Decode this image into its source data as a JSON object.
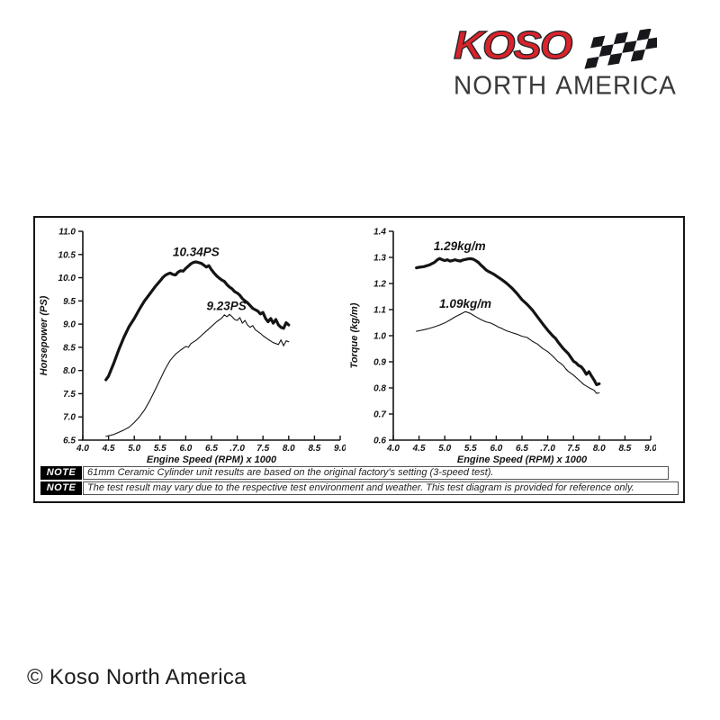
{
  "logo": {
    "brand": "KOSO",
    "region": "NORTH AMERICA",
    "brand_color": "#d9232b",
    "flag_icon": "checkered-flag"
  },
  "notes": [
    {
      "badge": "NOTE",
      "text": "61mm Ceramic Cylinder unit results are based on the original factory's setting (3-speed test)."
    },
    {
      "badge": "NOTE",
      "text": "The test result may vary due to the respective test environment and weather. This test diagram is provided for reference only."
    }
  ],
  "copyright": "© Koso North America",
  "ink_color": "#141414",
  "chart_data": [
    {
      "type": "line",
      "title": "",
      "xlabel": "Engine Speed (RPM) x 1000",
      "ylabel": "Horsepower (PS)",
      "xlim": [
        4.0,
        9.0
      ],
      "ylim": [
        6.5,
        11.0
      ],
      "grid": false,
      "legend": "none (inline annotations)",
      "x_ticks": [
        4.0,
        4.5,
        5.0,
        5.5,
        6.0,
        6.5,
        7.0,
        7.5,
        8.0,
        8.5,
        9.0
      ],
      "x_tick_labels": [
        "4.0",
        "4.5",
        "5.0",
        "5.5",
        "6.0",
        "6.5",
        ".7.0",
        "7.5",
        "8.0",
        "8.5",
        "9.0"
      ],
      "y_ticks": [
        6.5,
        7.0,
        7.5,
        8.0,
        8.5,
        9.0,
        9.5,
        10.0,
        10.5,
        11.0
      ],
      "y_tick_labels": [
        "6.5",
        "7.0",
        "7.5",
        "8.0",
        "8.5",
        "9.0",
        "9.5",
        "10.0",
        "10.5",
        "11.0"
      ],
      "series": [
        {
          "name": "thick-curve",
          "annotation": "10.34PS",
          "annotation_xy": [
            6.2,
            10.47
          ],
          "stroke_width": 3.2,
          "points": [
            [
              4.45,
              7.8
            ],
            [
              4.5,
              7.88
            ],
            [
              4.6,
              8.15
            ],
            [
              4.7,
              8.45
            ],
            [
              4.8,
              8.72
            ],
            [
              4.9,
              8.95
            ],
            [
              5.0,
              9.12
            ],
            [
              5.1,
              9.32
            ],
            [
              5.2,
              9.5
            ],
            [
              5.3,
              9.65
            ],
            [
              5.4,
              9.8
            ],
            [
              5.5,
              9.93
            ],
            [
              5.55,
              10.0
            ],
            [
              5.6,
              10.05
            ],
            [
              5.65,
              10.08
            ],
            [
              5.7,
              10.1
            ],
            [
              5.75,
              10.07
            ],
            [
              5.8,
              10.06
            ],
            [
              5.85,
              10.12
            ],
            [
              5.9,
              10.15
            ],
            [
              5.95,
              10.14
            ],
            [
              6.0,
              10.2
            ],
            [
              6.05,
              10.25
            ],
            [
              6.1,
              10.3
            ],
            [
              6.15,
              10.33
            ],
            [
              6.2,
              10.34
            ],
            [
              6.3,
              10.31
            ],
            [
              6.35,
              10.27
            ],
            [
              6.4,
              10.23
            ],
            [
              6.45,
              10.26
            ],
            [
              6.5,
              10.17
            ],
            [
              6.55,
              10.1
            ],
            [
              6.6,
              10.04
            ],
            [
              6.65,
              9.99
            ],
            [
              6.7,
              9.95
            ],
            [
              6.75,
              9.92
            ],
            [
              6.8,
              9.85
            ],
            [
              6.85,
              9.8
            ],
            [
              6.9,
              9.76
            ],
            [
              6.95,
              9.7
            ],
            [
              7.0,
              9.67
            ],
            [
              7.05,
              9.62
            ],
            [
              7.1,
              9.55
            ],
            [
              7.15,
              9.5
            ],
            [
              7.2,
              9.46
            ],
            [
              7.25,
              9.4
            ],
            [
              7.3,
              9.34
            ],
            [
              7.35,
              9.31
            ],
            [
              7.4,
              9.28
            ],
            [
              7.45,
              9.22
            ],
            [
              7.5,
              9.25
            ],
            [
              7.55,
              9.12
            ],
            [
              7.6,
              9.05
            ],
            [
              7.65,
              9.12
            ],
            [
              7.7,
              9.02
            ],
            [
              7.75,
              9.1
            ],
            [
              7.8,
              8.98
            ],
            [
              7.85,
              8.93
            ],
            [
              7.9,
              8.91
            ],
            [
              7.95,
              9.03
            ],
            [
              8.0,
              8.98
            ]
          ]
        },
        {
          "name": "thin-curve",
          "annotation": "9.23PS",
          "annotation_xy": [
            6.79,
            9.3
          ],
          "stroke_width": 1.1,
          "points": [
            [
              4.45,
              6.58
            ],
            [
              4.6,
              6.62
            ],
            [
              4.8,
              6.72
            ],
            [
              4.9,
              6.78
            ],
            [
              5.0,
              6.88
            ],
            [
              5.1,
              7.0
            ],
            [
              5.2,
              7.15
            ],
            [
              5.3,
              7.35
            ],
            [
              5.4,
              7.57
            ],
            [
              5.5,
              7.8
            ],
            [
              5.6,
              8.03
            ],
            [
              5.7,
              8.22
            ],
            [
              5.8,
              8.35
            ],
            [
              5.9,
              8.44
            ],
            [
              6.0,
              8.52
            ],
            [
              6.05,
              8.5
            ],
            [
              6.1,
              8.58
            ],
            [
              6.2,
              8.65
            ],
            [
              6.3,
              8.75
            ],
            [
              6.4,
              8.85
            ],
            [
              6.5,
              8.95
            ],
            [
              6.6,
              9.05
            ],
            [
              6.7,
              9.13
            ],
            [
              6.75,
              9.2
            ],
            [
              6.8,
              9.16
            ],
            [
              6.85,
              9.21
            ],
            [
              6.9,
              9.16
            ],
            [
              6.95,
              9.1
            ],
            [
              7.0,
              9.08
            ],
            [
              7.05,
              9.14
            ],
            [
              7.1,
              9.02
            ],
            [
              7.15,
              9.08
            ],
            [
              7.2,
              8.98
            ],
            [
              7.25,
              8.93
            ],
            [
              7.3,
              8.97
            ],
            [
              7.35,
              8.88
            ],
            [
              7.4,
              8.84
            ],
            [
              7.45,
              8.8
            ],
            [
              7.5,
              8.75
            ],
            [
              7.6,
              8.67
            ],
            [
              7.7,
              8.6
            ],
            [
              7.8,
              8.56
            ],
            [
              7.85,
              8.66
            ],
            [
              7.9,
              8.53
            ],
            [
              7.95,
              8.64
            ],
            [
              8.0,
              8.62
            ]
          ]
        }
      ]
    },
    {
      "type": "line",
      "title": "",
      "xlabel": "Engine Speed (RPM) x 1000",
      "ylabel": "Torque (kg/m)",
      "xlim": [
        4.0,
        9.0
      ],
      "ylim": [
        0.6,
        1.4
      ],
      "grid": false,
      "legend": "none (inline annotations)",
      "x_ticks": [
        4.0,
        4.5,
        5.0,
        5.5,
        6.0,
        6.5,
        7.0,
        7.5,
        8.0,
        8.5,
        9.0
      ],
      "x_tick_labels": [
        "4.0",
        "4.5",
        "5.0",
        "5.5",
        "6.0",
        "6.5",
        ".7.0",
        "7.5",
        "8.0",
        "8.5",
        "9.0"
      ],
      "y_ticks": [
        0.6,
        0.7,
        0.8,
        0.9,
        1.0,
        1.1,
        1.2,
        1.3,
        1.4
      ],
      "y_tick_labels": [
        "0.6",
        "0.7",
        "0.8",
        "0.9",
        "1.0",
        "1.1",
        "1.2",
        "1.3",
        "1.4"
      ],
      "series": [
        {
          "name": "thick-curve",
          "annotation": "1.29kg/m",
          "annotation_xy": [
            5.29,
            1.328
          ],
          "stroke_width": 3.2,
          "points": [
            [
              4.45,
              1.26
            ],
            [
              4.5,
              1.262
            ],
            [
              4.6,
              1.265
            ],
            [
              4.7,
              1.271
            ],
            [
              4.8,
              1.281
            ],
            [
              4.85,
              1.29
            ],
            [
              4.9,
              1.296
            ],
            [
              4.95,
              1.291
            ],
            [
              5.0,
              1.288
            ],
            [
              5.05,
              1.291
            ],
            [
              5.1,
              1.286
            ],
            [
              5.15,
              1.288
            ],
            [
              5.2,
              1.291
            ],
            [
              5.25,
              1.288
            ],
            [
              5.3,
              1.286
            ],
            [
              5.35,
              1.29
            ],
            [
              5.4,
              1.292
            ],
            [
              5.45,
              1.294
            ],
            [
              5.5,
              1.295
            ],
            [
              5.55,
              1.293
            ],
            [
              5.6,
              1.288
            ],
            [
              5.65,
              1.281
            ],
            [
              5.7,
              1.271
            ],
            [
              5.75,
              1.262
            ],
            [
              5.8,
              1.252
            ],
            [
              5.85,
              1.246
            ],
            [
              5.9,
              1.241
            ],
            [
              5.95,
              1.236
            ],
            [
              6.0,
              1.229
            ],
            [
              6.1,
              1.216
            ],
            [
              6.2,
              1.201
            ],
            [
              6.3,
              1.183
            ],
            [
              6.4,
              1.162
            ],
            [
              6.5,
              1.138
            ],
            [
              6.6,
              1.12
            ],
            [
              6.7,
              1.099
            ],
            [
              6.8,
              1.072
            ],
            [
              6.9,
              1.046
            ],
            [
              7.0,
              1.021
            ],
            [
              7.1,
              0.999
            ],
            [
              7.15,
              0.99
            ],
            [
              7.2,
              0.976
            ],
            [
              7.3,
              0.951
            ],
            [
              7.4,
              0.931
            ],
            [
              7.5,
              0.902
            ],
            [
              7.55,
              0.896
            ],
            [
              7.6,
              0.886
            ],
            [
              7.65,
              0.881
            ],
            [
              7.7,
              0.869
            ],
            [
              7.75,
              0.852
            ],
            [
              7.8,
              0.862
            ],
            [
              7.85,
              0.846
            ],
            [
              7.9,
              0.83
            ],
            [
              7.95,
              0.812
            ],
            [
              8.0,
              0.816
            ]
          ]
        },
        {
          "name": "thin-curve",
          "annotation": "1.09kg/m",
          "annotation_xy": [
            5.4,
            1.107
          ],
          "stroke_width": 1.1,
          "points": [
            [
              4.45,
              1.017
            ],
            [
              4.5,
              1.019
            ],
            [
              4.6,
              1.023
            ],
            [
              4.7,
              1.028
            ],
            [
              4.8,
              1.034
            ],
            [
              4.9,
              1.041
            ],
            [
              5.0,
              1.049
            ],
            [
              5.1,
              1.06
            ],
            [
              5.2,
              1.072
            ],
            [
              5.3,
              1.082
            ],
            [
              5.35,
              1.087
            ],
            [
              5.4,
              1.092
            ],
            [
              5.45,
              1.089
            ],
            [
              5.5,
              1.085
            ],
            [
              5.55,
              1.079
            ],
            [
              5.6,
              1.073
            ],
            [
              5.7,
              1.062
            ],
            [
              5.8,
              1.053
            ],
            [
              5.9,
              1.048
            ],
            [
              6.0,
              1.038
            ],
            [
              6.05,
              1.032
            ],
            [
              6.1,
              1.029
            ],
            [
              6.15,
              1.023
            ],
            [
              6.2,
              1.019
            ],
            [
              6.3,
              1.012
            ],
            [
              6.4,
              1.006
            ],
            [
              6.5,
              0.998
            ],
            [
              6.6,
              0.993
            ],
            [
              6.65,
              0.986
            ],
            [
              6.7,
              0.979
            ],
            [
              6.8,
              0.968
            ],
            [
              6.9,
              0.951
            ],
            [
              7.0,
              0.939
            ],
            [
              7.1,
              0.921
            ],
            [
              7.2,
              0.901
            ],
            [
              7.25,
              0.894
            ],
            [
              7.3,
              0.886
            ],
            [
              7.35,
              0.873
            ],
            [
              7.4,
              0.863
            ],
            [
              7.5,
              0.849
            ],
            [
              7.6,
              0.831
            ],
            [
              7.7,
              0.813
            ],
            [
              7.8,
              0.801
            ],
            [
              7.9,
              0.791
            ],
            [
              7.95,
              0.779
            ],
            [
              8.0,
              0.781
            ]
          ]
        }
      ]
    }
  ]
}
